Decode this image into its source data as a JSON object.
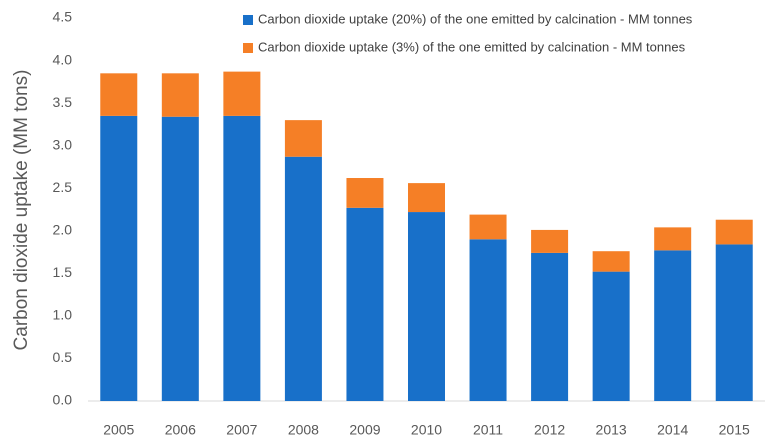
{
  "chart_data": {
    "type": "stacked-bar",
    "y_label": "Carbon dioxide uptake (MM tons)",
    "categories": [
      "2005",
      "2006",
      "2007",
      "2008",
      "2009",
      "2010",
      "2011",
      "2012",
      "2013",
      "2014",
      "2015"
    ],
    "series": [
      {
        "name": "Carbon dioxide uptake (20%) of the one emitted by calcination - MM tonnes",
        "color": "#1870c9",
        "values": [
          3.35,
          3.34,
          3.35,
          2.87,
          2.27,
          2.22,
          1.9,
          1.74,
          1.52,
          1.77,
          1.84
        ]
      },
      {
        "name": "Carbon dioxide uptake (3%) of the one emitted by calcination - MM tonnes",
        "color": "#f57f26",
        "values": [
          0.5,
          0.51,
          0.52,
          0.43,
          0.35,
          0.34,
          0.29,
          0.27,
          0.24,
          0.27,
          0.29
        ]
      }
    ],
    "ylim": [
      0,
      4.5
    ],
    "yticks": [
      {
        "value": 0,
        "label": "0.0"
      },
      0.5,
      {
        "value": 1,
        "label": "1.0"
      },
      1.5,
      {
        "value": 2,
        "label": "2.0"
      },
      2.5,
      {
        "value": 3,
        "label": "3.0"
      },
      3.5,
      {
        "value": 4,
        "label": "4.0"
      },
      4.5
    ],
    "grid": false
  }
}
